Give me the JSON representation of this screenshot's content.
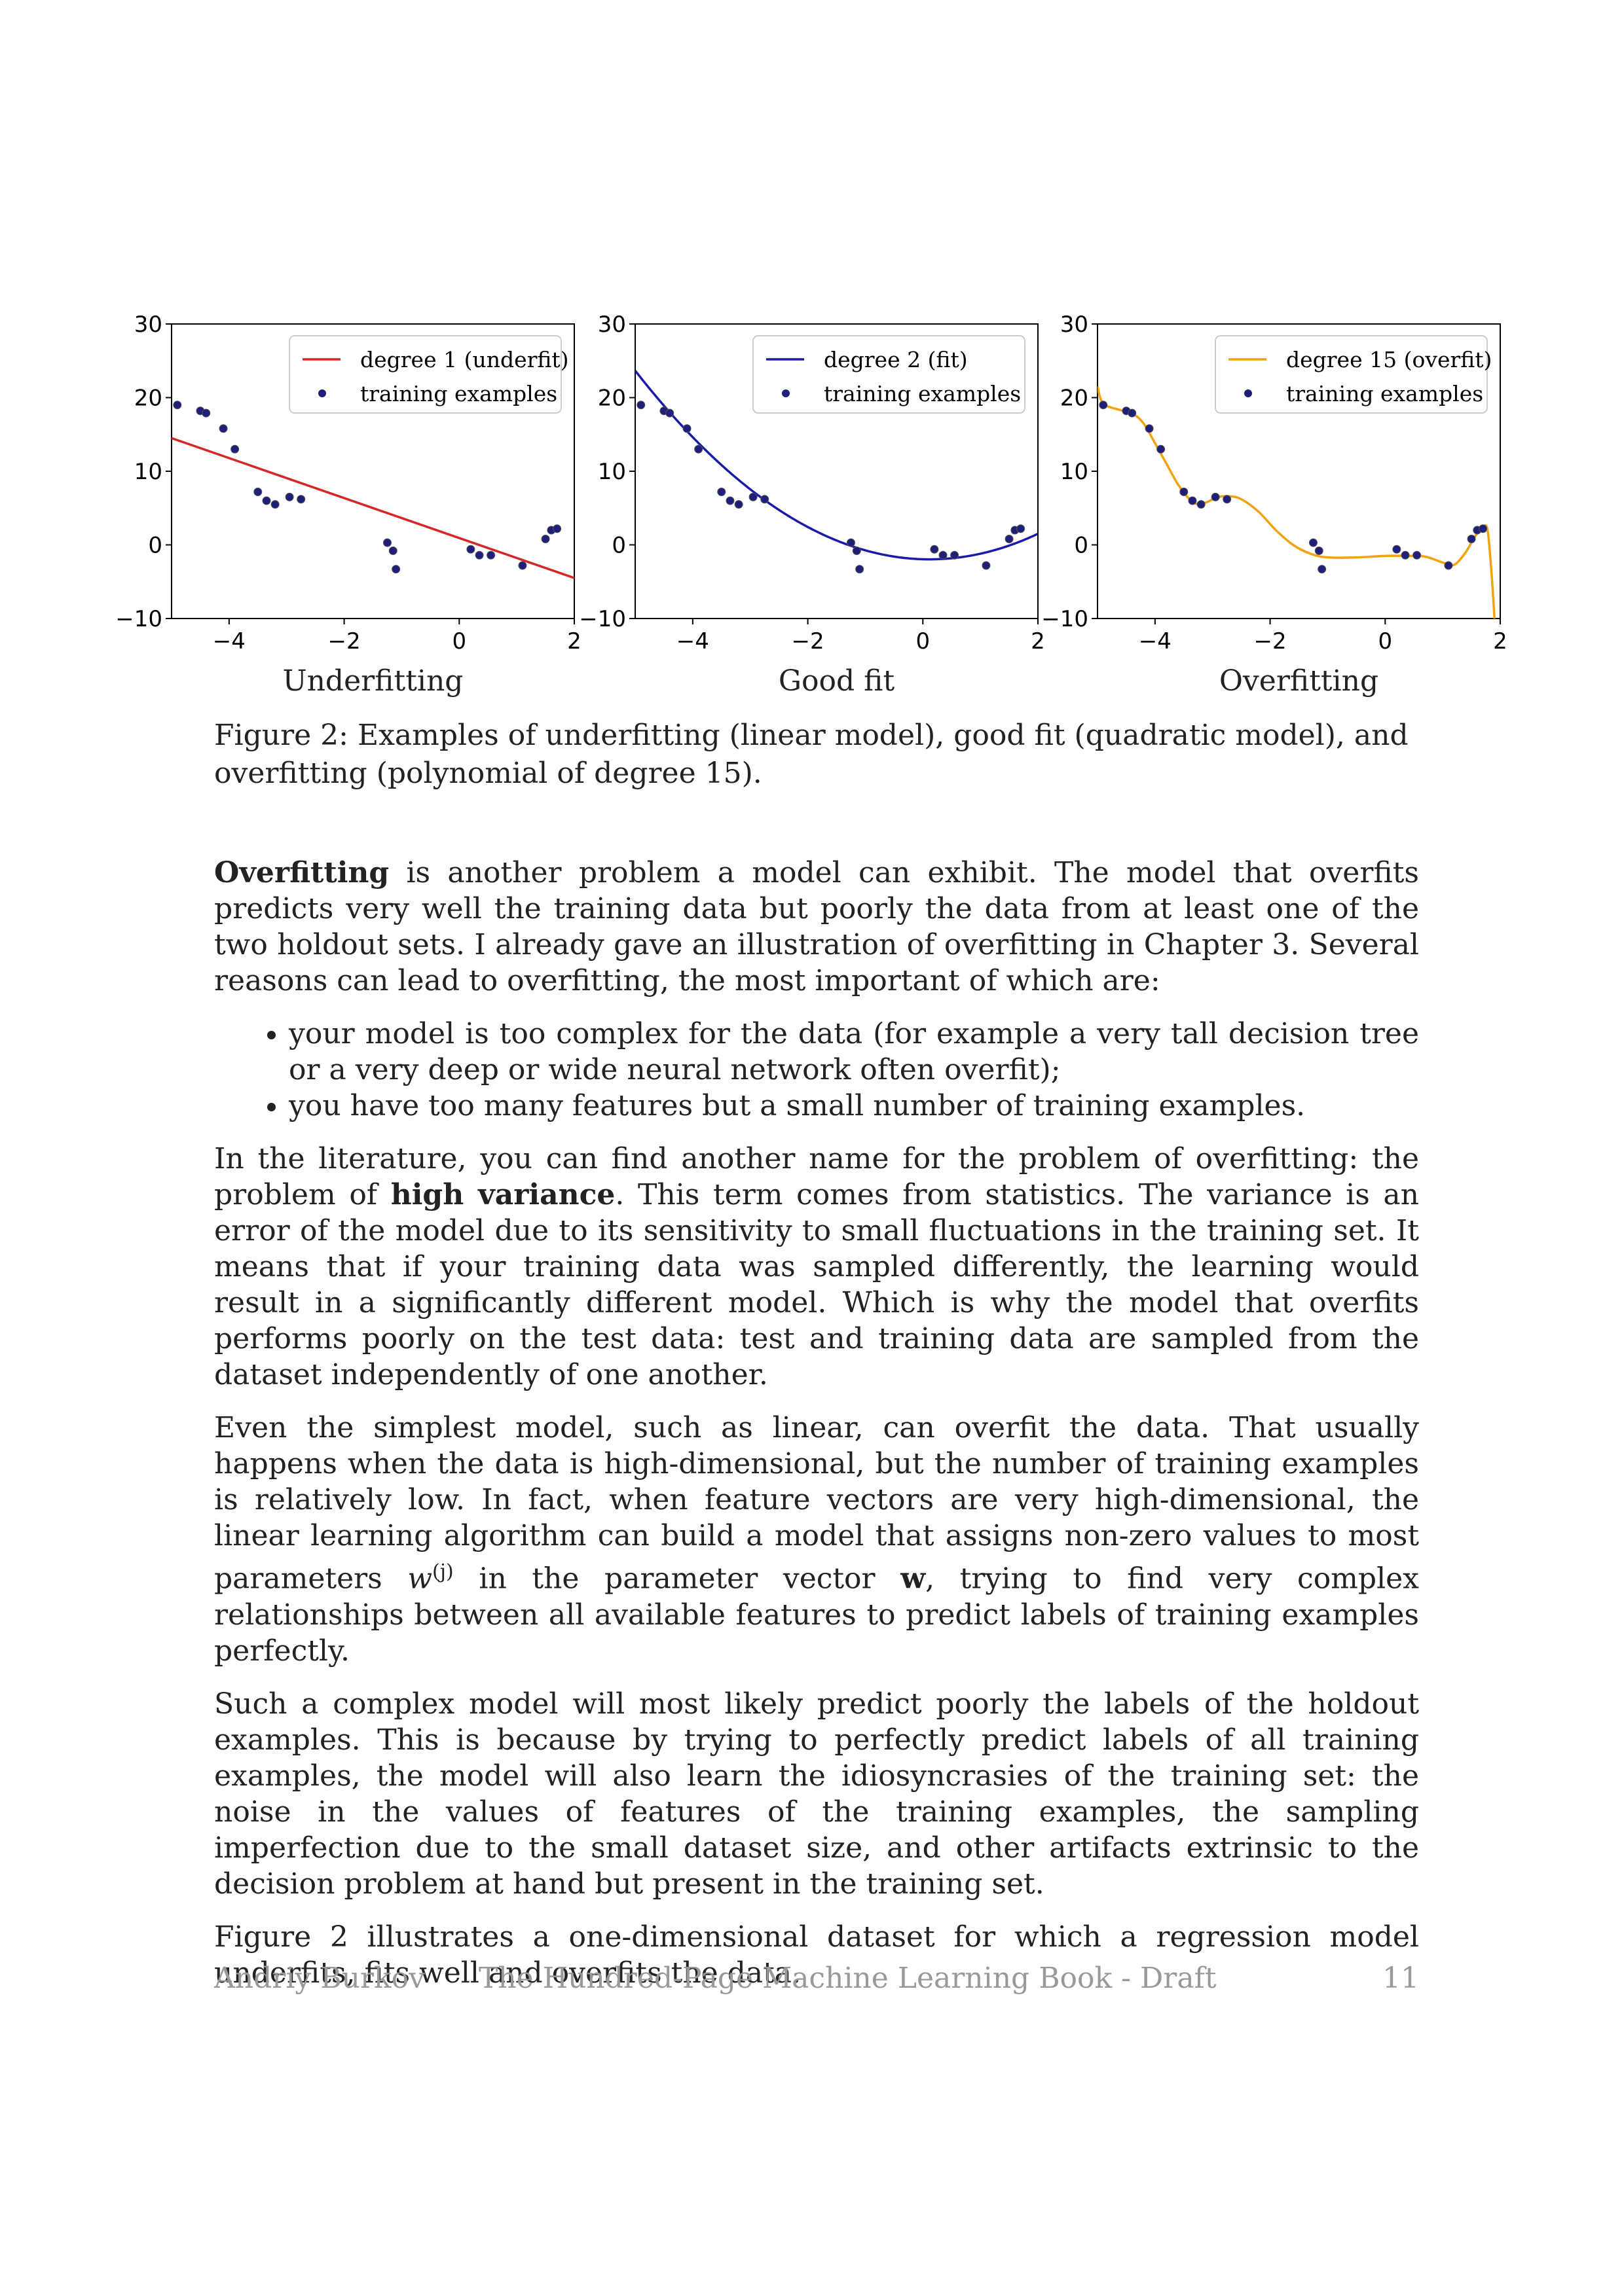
{
  "figure": {
    "panels": [
      {
        "subtitle": "Underfitting",
        "legend": {
          "line_label": "degree 1 (underfit)",
          "points_label": "training examples"
        },
        "line_color": "#d62728",
        "point_color": "#1f1f7a",
        "x_ticks": [
          "−4",
          "−2",
          "0",
          "2"
        ],
        "y_ticks": [
          "30",
          "20",
          "10",
          "0",
          "−10"
        ]
      },
      {
        "subtitle": "Good fit",
        "legend": {
          "line_label": "degree 2 (fit)",
          "points_label": "training examples"
        },
        "line_color": "#1a1aad",
        "point_color": "#1f1f7a",
        "x_ticks": [
          "−4",
          "−2",
          "0",
          "2"
        ],
        "y_ticks": [
          "30",
          "20",
          "10",
          "0",
          "−10"
        ]
      },
      {
        "subtitle": "Overfitting",
        "legend": {
          "line_label": "degree 15 (overfit)",
          "points_label": "training examples"
        },
        "line_color": "#f0a30a",
        "point_color": "#1f1f7a",
        "x_ticks": [
          "−4",
          "−2",
          "0",
          "2"
        ],
        "y_ticks": [
          "30",
          "20",
          "10",
          "0",
          "−10"
        ]
      }
    ]
  },
  "chart_data": [
    {
      "type": "scatter",
      "title": "Underfitting",
      "xlim": [
        -5,
        2
      ],
      "ylim": [
        -10,
        30
      ],
      "series": [
        {
          "name": "training examples",
          "points": [
            [
              -4.9,
              19
            ],
            [
              -4.5,
              18.2
            ],
            [
              -4.4,
              17.9
            ],
            [
              -4.1,
              15.8
            ],
            [
              -3.9,
              13
            ],
            [
              -3.5,
              7.2
            ],
            [
              -3.35,
              6
            ],
            [
              -3.2,
              5.5
            ],
            [
              -2.95,
              6.5
            ],
            [
              -2.75,
              6.2
            ],
            [
              -1.25,
              0.3
            ],
            [
              -1.15,
              -0.8
            ],
            [
              -1.1,
              -3.3
            ],
            [
              0.2,
              -0.6
            ],
            [
              0.35,
              -1.4
            ],
            [
              0.55,
              -1.4
            ],
            [
              1.1,
              -2.8
            ],
            [
              1.5,
              0.8
            ],
            [
              1.6,
              2
            ],
            [
              1.7,
              2.2
            ]
          ]
        },
        {
          "name": "degree 1 (underfit)",
          "coef": [
            1.0,
            -2.7
          ]
        }
      ]
    },
    {
      "type": "scatter",
      "title": "Good fit",
      "xlim": [
        -5,
        2
      ],
      "ylim": [
        -10,
        30
      ],
      "series": [
        {
          "name": "training examples",
          "points": [
            [
              -4.9,
              19
            ],
            [
              -4.5,
              18.2
            ],
            [
              -4.4,
              17.9
            ],
            [
              -4.1,
              15.8
            ],
            [
              -3.9,
              13
            ],
            [
              -3.5,
              7.2
            ],
            [
              -3.35,
              6
            ],
            [
              -3.2,
              5.5
            ],
            [
              -2.95,
              6.5
            ],
            [
              -2.75,
              6.2
            ],
            [
              -1.25,
              0.3
            ],
            [
              -1.15,
              -0.8
            ],
            [
              -1.1,
              -3.3
            ],
            [
              0.2,
              -0.6
            ],
            [
              0.35,
              -1.4
            ],
            [
              0.55,
              -1.4
            ],
            [
              1.1,
              -2.8
            ],
            [
              1.5,
              0.8
            ],
            [
              1.6,
              2
            ],
            [
              1.7,
              2.2
            ]
          ]
        },
        {
          "name": "degree 2 (fit)",
          "coef": [
            -1.95,
            -0.23,
            1.03
          ]
        }
      ]
    },
    {
      "type": "scatter",
      "title": "Overfitting",
      "xlim": [
        -5,
        2
      ],
      "ylim": [
        -10,
        30
      ],
      "series": [
        {
          "name": "training examples",
          "points": [
            [
              -4.9,
              19
            ],
            [
              -4.5,
              18.2
            ],
            [
              -4.4,
              17.9
            ],
            [
              -4.1,
              15.8
            ],
            [
              -3.9,
              13
            ],
            [
              -3.5,
              7.2
            ],
            [
              -3.35,
              6
            ],
            [
              -3.2,
              5.5
            ],
            [
              -2.95,
              6.5
            ],
            [
              -2.75,
              6.2
            ],
            [
              -1.25,
              0.3
            ],
            [
              -1.15,
              -0.8
            ],
            [
              -1.1,
              -3.3
            ],
            [
              0.2,
              -0.6
            ],
            [
              0.35,
              -1.4
            ],
            [
              0.55,
              -1.4
            ],
            [
              1.1,
              -2.8
            ],
            [
              1.5,
              0.8
            ],
            [
              1.6,
              2
            ],
            [
              1.7,
              2.2
            ]
          ]
        },
        {
          "name": "degree 15 (overfit)",
          "curve": [
            [
              -5,
              21.5
            ],
            [
              -4.9,
              19.2
            ],
            [
              -4.6,
              18.3
            ],
            [
              -4.4,
              17.9
            ],
            [
              -4.2,
              16.5
            ],
            [
              -4.0,
              13.8
            ],
            [
              -3.8,
              11
            ],
            [
              -3.6,
              8.2
            ],
            [
              -3.4,
              6.2
            ],
            [
              -3.25,
              5.5
            ],
            [
              -3.1,
              5.8
            ],
            [
              -2.9,
              6.5
            ],
            [
              -2.7,
              6.6
            ],
            [
              -2.5,
              6.2
            ],
            [
              -2.2,
              4.5
            ],
            [
              -1.9,
              2
            ],
            [
              -1.6,
              0
            ],
            [
              -1.3,
              -1.2
            ],
            [
              -1.0,
              -1.7
            ],
            [
              -0.5,
              -1.7
            ],
            [
              0,
              -1.5
            ],
            [
              0.4,
              -1.5
            ],
            [
              0.7,
              -1.6
            ],
            [
              1.0,
              -2.4
            ],
            [
              1.2,
              -2.7
            ],
            [
              1.4,
              -1
            ],
            [
              1.55,
              1
            ],
            [
              1.7,
              2.4
            ],
            [
              1.78,
              2
            ],
            [
              1.85,
              -4
            ],
            [
              1.9,
              -10
            ]
          ]
        }
      ]
    }
  ],
  "caption": {
    "label": "Figure 2:",
    "text": " Examples of underfitting (linear model), good fit (quadratic model), and overfitting (polynomial of degree 15)."
  },
  "paragraphs": {
    "p1_bold": "Overfitting",
    "p1_rest": " is another problem a model can exhibit. The model that overfits predicts very well the training data but poorly the data from at least one of the two holdout sets. I already gave an illustration of overfitting in Chapter 3. Several reasons can lead to overfitting, the most important of which are:",
    "bullets": [
      "your model is too complex for the data (for example a very tall decision tree or a very deep or wide neural network often overfit);",
      "you have too many features but a small number of training examples."
    ],
    "p2_a": "In the literature, you can find another name for the problem of overfitting: the problem of ",
    "p2_bold": "high variance",
    "p2_b": ". This term comes from statistics. The variance is an error of the model due to its sensitivity to small fluctuations in the training set. It means that if your training data was sampled differently, the learning would result in a significantly different model. Which is why the model that overfits performs poorly on the test data: test and training data are sampled from the dataset independently of one another.",
    "p3_a": "Even the simplest model, such as linear, can overfit the data. That usually happens when the data is high-dimensional, but the number of training examples is relatively low. In fact, when feature vectors are very high-dimensional, the linear learning algorithm can build a model that assigns non-zero values to most parameters ",
    "p3_w": "w",
    "p3_sup": "(j)",
    "p3_b": " in the parameter vector ",
    "p3_bold_w": "w",
    "p3_c": ", trying to find very complex relationships between all available features to predict labels of training examples perfectly.",
    "p4": "Such a complex model will most likely predict poorly the labels of the holdout examples. This is because by trying to perfectly predict labels of all training examples, the model will also learn the idiosyncrasies of the training set: the noise in the values of features of the training examples, the sampling imperfection due to the small dataset size, and other artifacts extrinsic to the decision problem at hand but present in the training set.",
    "p5": "Figure 2 illustrates a one-dimensional dataset for which a regression model underfits, fits well and overfits the data."
  },
  "footer": {
    "author": "Andriy Burkov",
    "book": "The Hundred-Page Machine Learning Book - Draft",
    "page": "11"
  }
}
